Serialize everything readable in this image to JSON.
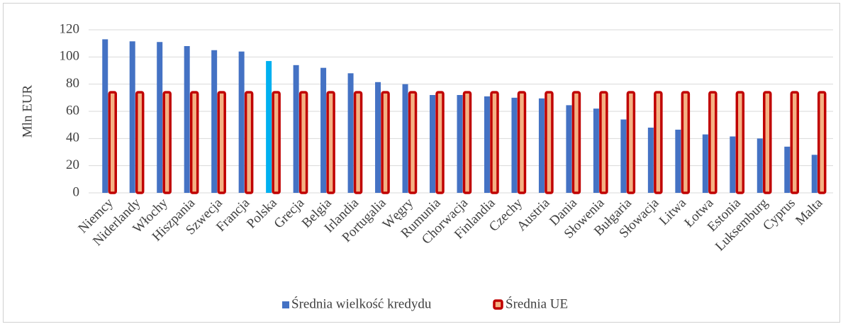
{
  "chart_data": {
    "type": "bar",
    "y_label": "Mln EUR",
    "categories": [
      "Niemcy",
      "Niderlandy",
      "Włochy",
      "Hiszpania",
      "Szwecja",
      "Francja",
      "Polska",
      "Grecja",
      "Belgia",
      "Irlandia",
      "Portugalia",
      "Węgry",
      "Rumunia",
      "Chorwacja",
      "Finlandia",
      "Czechy",
      "Austria",
      "Dania",
      "Słowenia",
      "Bułgaria",
      "Słowacja",
      "Litwa",
      "Łotwa",
      "Estonia",
      "Luksemburg",
      "Cyprus",
      "Malta"
    ],
    "series": [
      {
        "name": "Średnia wielkość kredydu",
        "color": "#4472c4",
        "colors": [
          "#4472c4",
          "#4472c4",
          "#4472c4",
          "#4472c4",
          "#4472c4",
          "#4472c4",
          "#00b0f0",
          "#4472c4",
          "#4472c4",
          "#4472c4",
          "#4472c4",
          "#4472c4",
          "#4472c4",
          "#4472c4",
          "#4472c4",
          "#4472c4",
          "#4472c4",
          "#4472c4",
          "#4472c4",
          "#4472c4",
          "#4472c4",
          "#4472c4",
          "#4472c4",
          "#4472c4",
          "#4472c4",
          "#4472c4",
          "#4472c4"
        ],
        "values": [
          113,
          111.5,
          111,
          108,
          105,
          104,
          97,
          94,
          92,
          88,
          81.5,
          80,
          72,
          72,
          71,
          70,
          69.5,
          64.5,
          62,
          54,
          48,
          46.5,
          43,
          41.5,
          40,
          34,
          28
        ]
      },
      {
        "name": "Średnia UE",
        "color": "#f4b183",
        "edge_color": "#c00000",
        "values": [
          74,
          74,
          74,
          74,
          74,
          74,
          74,
          74,
          74,
          74,
          74,
          74,
          74,
          74,
          74,
          74,
          74,
          74,
          74,
          74,
          74,
          74,
          74,
          74,
          74,
          74,
          74
        ]
      }
    ],
    "ylim": [
      0,
      120
    ],
    "yticks": [
      0,
      20,
      40,
      60,
      80,
      100,
      120
    ],
    "grid": true,
    "legend": "bottom"
  }
}
